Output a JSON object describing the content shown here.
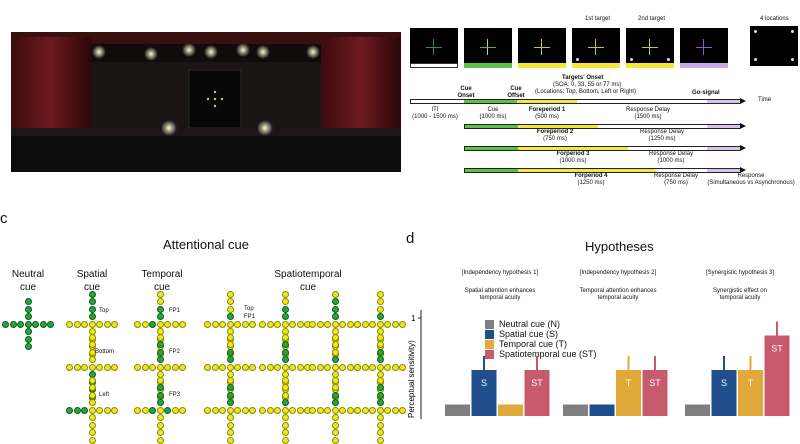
{
  "panel_a": {
    "time_label": "Time",
    "locations_label": "4 locations",
    "targets": [
      "1st target",
      "2nd target"
    ],
    "cue_onset": [
      "Cue",
      "Onset"
    ],
    "cue_offset": [
      "Cue",
      "Offset"
    ],
    "targets_onset": "Targets' Onset",
    "soa": "(SOA: 0, 33, 55 or 77 ms)",
    "locations": "(Locations: Top, Bottom, Left or Right)",
    "iti": [
      "ITI",
      "(1000 - 1500 ms)"
    ],
    "cue": [
      "Cue",
      "(1000 ms)"
    ],
    "go_signal": "Go-signal",
    "rows": [
      {
        "fp": "Foreperiod 1",
        "fp_ms": "(500 ms)",
        "rd": "Response Delay",
        "rd_ms": "(1500 ms)"
      },
      {
        "fp": "Foreperiod 2",
        "fp_ms": "(750 ms)",
        "rd": "Response Delay",
        "rd_ms": "(1250 ms)"
      },
      {
        "fp": "Forperiod 3",
        "fp_ms": "(1000 ms)",
        "rd": "Response Delay",
        "rd_ms": "(1000 ms)"
      },
      {
        "fp": "Forperiod 4",
        "fp_ms": "(1250 ms)",
        "rd": "Response Delay",
        "rd_ms": "(750 ms)"
      }
    ],
    "response": [
      "Response",
      "(Simultaneous vs Asynchronous)"
    ]
  },
  "panel_c": {
    "letter": "c",
    "title": "Attentional cue",
    "columns": [
      {
        "l1": "Neutral",
        "l2": "cue"
      },
      {
        "l1": "Spatial",
        "l2": "cue"
      },
      {
        "l1": "Temporal",
        "l2": "cue"
      },
      {
        "l1": "Spatiotemporal",
        "l2": "cue"
      }
    ],
    "spatial_labels": [
      "Top",
      "Bottom",
      "Left"
    ],
    "temporal_labels": [
      "FP1",
      "FP2",
      "FP3"
    ],
    "st_labels": [
      "Top",
      "FP1"
    ]
  },
  "panel_d": {
    "letter": "d",
    "title": "Hypotheses",
    "hypotheses": [
      {
        "name": "[Independency hypothesis 1]",
        "desc1": "Spatial attention enhances",
        "desc2": "temporal acuity"
      },
      {
        "name": "[Independency hypothesis 2]",
        "desc1": "Temporal attention enhances",
        "desc2": "temporal acuity"
      },
      {
        "name": "[Synergistic hypothesis 3]",
        "desc1": "Synergistic effect on",
        "desc2": "temporal acuity"
      }
    ],
    "ylabel": "Perceptual sensitivity)",
    "ytick": "1",
    "legend": [
      {
        "label": "Neutral cue (N)",
        "color": "#7f7f7f"
      },
      {
        "label": "Spatial cue (S)",
        "color": "#1f4e8c"
      },
      {
        "label": "Temporal cue (T)",
        "color": "#e1a93a"
      },
      {
        "label": "Spatiotemporal cue (ST)",
        "color": "#c85a6e"
      }
    ],
    "bar_labels": [
      "S",
      "ST",
      "T",
      "ST",
      "S",
      "T",
      "ST"
    ]
  },
  "chart_data": {
    "type": "bar",
    "title": "Hypotheses",
    "ylabel": "Perceptual sensitivity)",
    "categories": [
      "[Independency hypothesis 1]",
      "[Independency hypothesis 2]",
      "[Synergistic hypothesis 3]"
    ],
    "series": [
      {
        "name": "Neutral cue (N)",
        "values": [
          0.1,
          0.1,
          0.1
        ]
      },
      {
        "name": "Spatial cue (S)",
        "values": [
          0.4,
          0.1,
          0.4
        ]
      },
      {
        "name": "Temporal cue (T)",
        "values": [
          0.1,
          0.4,
          0.4
        ]
      },
      {
        "name": "Spatiotemporal cue (ST)",
        "values": [
          0.4,
          0.4,
          0.7
        ]
      }
    ]
  }
}
